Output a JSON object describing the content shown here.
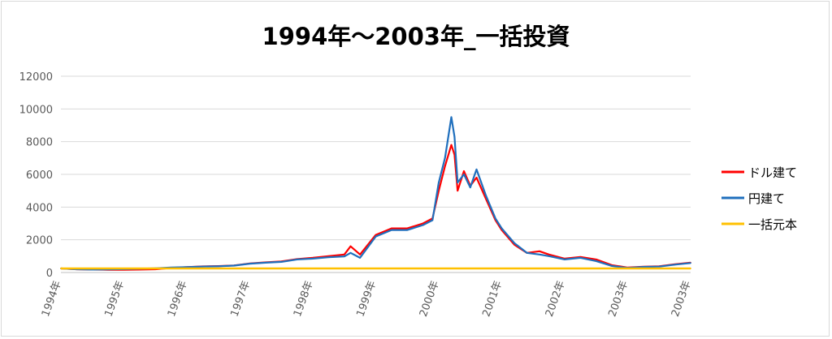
{
  "chart_data": {
    "type": "line",
    "title": "1994年～2003年_一括投資",
    "xlabel": "",
    "ylabel": "",
    "ylim": [
      0,
      12000
    ],
    "yticks": [
      0,
      2000,
      4000,
      6000,
      8000,
      10000,
      12000
    ],
    "x_ticks": [
      "1994年",
      "1995年",
      "1996年",
      "1997年",
      "1998年",
      "1999年",
      "2000年",
      "2001年",
      "2002年",
      "2003年",
      "2003年"
    ],
    "grid": true,
    "legend_position": "right",
    "colors": {
      "dollar": "#ff0000",
      "yen": "#1f6fbd",
      "principal": "#ffc000"
    },
    "series": [
      {
        "name": "ドル建て",
        "x": [
          1994.0,
          1994.25,
          1994.5,
          1994.75,
          1995.0,
          1995.25,
          1995.5,
          1995.75,
          1996.0,
          1996.25,
          1996.5,
          1996.75,
          1997.0,
          1997.25,
          1997.5,
          1997.75,
          1998.0,
          1998.25,
          1998.5,
          1998.6,
          1998.75,
          1999.0,
          1999.25,
          1999.5,
          1999.75,
          1999.9,
          2000.0,
          2000.1,
          2000.2,
          2000.25,
          2000.3,
          2000.4,
          2000.5,
          2000.6,
          2000.75,
          2000.9,
          2001.0,
          2001.2,
          2001.4,
          2001.6,
          2001.75,
          2002.0,
          2002.25,
          2002.5,
          2002.75,
          2003.0,
          2003.25,
          2003.5,
          2003.75,
          2004.0
        ],
        "values": [
          250,
          200,
          180,
          170,
          170,
          180,
          200,
          280,
          330,
          370,
          390,
          430,
          550,
          620,
          680,
          820,
          900,
          1000,
          1100,
          1600,
          1100,
          2300,
          2700,
          2700,
          3000,
          3300,
          5000,
          6500,
          7800,
          7200,
          5000,
          6200,
          5300,
          5800,
          4500,
          3200,
          2600,
          1700,
          1200,
          1300,
          1100,
          850,
          950,
          800,
          450,
          300,
          350,
          380,
          500,
          600
        ]
      },
      {
        "name": "円建て",
        "x": [
          1994.0,
          1994.25,
          1994.5,
          1994.75,
          1995.0,
          1995.25,
          1995.5,
          1995.75,
          1996.0,
          1996.25,
          1996.5,
          1996.75,
          1997.0,
          1997.25,
          1997.5,
          1997.75,
          1998.0,
          1998.25,
          1998.5,
          1998.6,
          1998.75,
          1999.0,
          1999.25,
          1999.5,
          1999.75,
          1999.9,
          2000.0,
          2000.1,
          2000.2,
          2000.25,
          2000.3,
          2000.4,
          2000.5,
          2000.6,
          2000.75,
          2000.9,
          2001.0,
          2001.2,
          2001.4,
          2001.6,
          2001.75,
          2002.0,
          2002.25,
          2002.5,
          2002.75,
          2003.0,
          2003.25,
          2003.5,
          2003.75,
          2004.0
        ],
        "values": [
          250,
          200,
          180,
          190,
          210,
          230,
          260,
          300,
          330,
          360,
          380,
          420,
          540,
          600,
          650,
          800,
          850,
          930,
          980,
          1200,
          900,
          2200,
          2600,
          2600,
          2900,
          3200,
          5500,
          7000,
          9500,
          8300,
          5500,
          6000,
          5200,
          6300,
          4700,
          3300,
          2700,
          1800,
          1200,
          1100,
          1000,
          800,
          900,
          700,
          400,
          280,
          340,
          360,
          480,
          580
        ]
      },
      {
        "name": "一括元本",
        "x": [
          1994.0,
          2004.0
        ],
        "values": [
          250,
          250
        ]
      }
    ]
  }
}
